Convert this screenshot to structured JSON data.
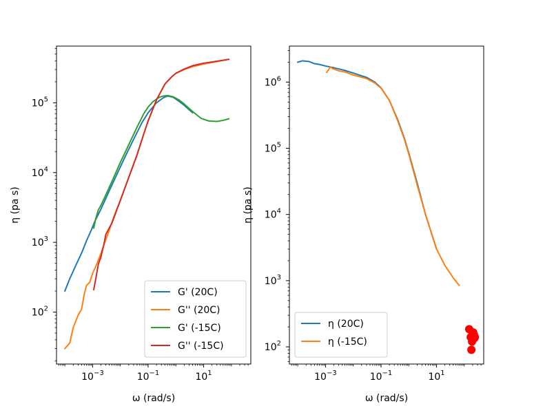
{
  "chart_data": [
    {
      "type": "line",
      "xscale": "log",
      "yscale": "log",
      "xlabel": "ω (rad/s)",
      "ylabel": "η (pa s)",
      "xlim": [
        5e-05,
        500
      ],
      "ylim": [
        18,
        650000
      ],
      "xticks": [
        {
          "value": 0.001,
          "base": "10",
          "exp": "−3"
        },
        {
          "value": 0.1,
          "base": "10",
          "exp": "−1"
        },
        {
          "value": 10,
          "base": "10",
          "exp": "1"
        }
      ],
      "yticks": [
        {
          "value": 100,
          "base": "10",
          "exp": "2"
        },
        {
          "value": 1000,
          "base": "10",
          "exp": "3"
        },
        {
          "value": 10000,
          "base": "10",
          "exp": "4"
        },
        {
          "value": 100000,
          "base": "10",
          "exp": "5"
        }
      ],
      "legend_position": "lower-right",
      "series": [
        {
          "name": "G' (20C)",
          "color": "#1f77b4",
          "x": [
            0.0001,
            0.00015,
            0.00025,
            0.0004,
            0.0006,
            0.0009,
            0.0012,
            0.002,
            0.004,
            0.008,
            0.016,
            0.03,
            0.06,
            0.1,
            0.2,
            0.35,
            0.5,
            0.8,
            1.3,
            2,
            4
          ],
          "y": [
            200,
            300,
            470,
            700,
            1050,
            1500,
            2000,
            3000,
            5500,
            10000,
            18000,
            30000,
            52000,
            72000,
            100000,
            118000,
            125000,
            120000,
            105000,
            92000,
            72000
          ]
        },
        {
          "name": "G'' (20C)",
          "color": "#ff7f0e",
          "x": [
            0.0001,
            0.00015,
            0.0002,
            0.0003,
            0.0004,
            0.0005,
            0.0006,
            0.0008,
            0.001,
            0.0013,
            0.0018,
            0.0025,
            0.004,
            0.006,
            0.01,
            0.02,
            0.04,
            0.07,
            0.1,
            0.2,
            0.4,
            0.7,
            1,
            2,
            4,
            10,
            30,
            80
          ],
          "y": [
            30,
            36,
            60,
            90,
            110,
            180,
            240,
            270,
            360,
            450,
            620,
            900,
            1500,
            2400,
            4000,
            8500,
            18000,
            36000,
            55000,
            110000,
            185000,
            235000,
            265000,
            300000,
            330000,
            360000,
            390000,
            420000
          ]
        },
        {
          "name": "G' (-15C)",
          "color": "#2ca02c",
          "x": [
            0.0011,
            0.0013,
            0.0016,
            0.002,
            0.003,
            0.005,
            0.01,
            0.02,
            0.04,
            0.07,
            0.1,
            0.15,
            0.25,
            0.35,
            0.5,
            0.8,
            1.3,
            2,
            4,
            8,
            15,
            30,
            50,
            80
          ],
          "y": [
            1600,
            2200,
            2900,
            3400,
            4800,
            7500,
            14000,
            25000,
            45000,
            70000,
            87000,
            104000,
            120000,
            125000,
            127000,
            122000,
            110000,
            96000,
            75000,
            60000,
            55000,
            54000,
            56000,
            59000
          ]
        },
        {
          "name": "G'' (-15C)",
          "color": "#d62728",
          "x": [
            0.0011,
            0.0013,
            0.0016,
            0.002,
            0.0025,
            0.003,
            0.005,
            0.01,
            0.02,
            0.04,
            0.07,
            0.1,
            0.2,
            0.4,
            0.7,
            1,
            2,
            4,
            10,
            30,
            80
          ],
          "y": [
            210,
            300,
            480,
            620,
            900,
            1300,
            1900,
            4000,
            8500,
            18000,
            36000,
            55000,
            110000,
            185000,
            235000,
            265000,
            305000,
            340000,
            370000,
            395000,
            420000
          ]
        }
      ]
    },
    {
      "type": "line",
      "xscale": "log",
      "yscale": "log",
      "xlabel": "ω (rad/s)",
      "ylabel": "η (pa s)",
      "xlim": [
        5e-05,
        500
      ],
      "ylim": [
        55,
        3500000
      ],
      "xticks": [
        {
          "value": 0.001,
          "base": "10",
          "exp": "−3"
        },
        {
          "value": 0.1,
          "base": "10",
          "exp": "−1"
        },
        {
          "value": 10,
          "base": "10",
          "exp": "1"
        }
      ],
      "yticks": [
        {
          "value": 100,
          "base": "10",
          "exp": "2"
        },
        {
          "value": 1000,
          "base": "10",
          "exp": "3"
        },
        {
          "value": 10000,
          "base": "10",
          "exp": "4"
        },
        {
          "value": 100000,
          "base": "10",
          "exp": "5"
        },
        {
          "value": 1000000,
          "base": "10",
          "exp": "6"
        }
      ],
      "legend_position": "lower-left",
      "series": [
        {
          "name": "η (20C)",
          "color": "#1f77b4",
          "x": [
            0.0001,
            0.00015,
            0.00025,
            0.0004,
            0.0006,
            0.001,
            0.002,
            0.005,
            0.01,
            0.03,
            0.06,
            0.1,
            0.2,
            0.4,
            0.7,
            1,
            2,
            4,
            10
          ],
          "y": [
            2000000,
            2100000,
            2050000,
            1900000,
            1850000,
            1750000,
            1650000,
            1500000,
            1370000,
            1180000,
            1000000,
            820000,
            530000,
            270000,
            140000,
            85000,
            30000,
            10000,
            3000
          ]
        },
        {
          "name": "η (-15C)",
          "color": "#ff7f0e",
          "x": [
            0.0011,
            0.0013,
            0.0015,
            0.0018,
            0.003,
            0.005,
            0.01,
            0.03,
            0.06,
            0.1,
            0.2,
            0.4,
            0.7,
            1,
            2,
            4,
            10,
            20,
            40,
            65
          ],
          "y": [
            1400000,
            1550000,
            1700000,
            1600000,
            1480000,
            1420000,
            1280000,
            1130000,
            970000,
            810000,
            530000,
            260000,
            135000,
            82000,
            28000,
            10000,
            3000,
            1700,
            1100,
            850
          ]
        },
        {
          "name": "",
          "color": "#ff0000",
          "marker": "o",
          "linestyle": "none",
          "x": [
            150,
            170,
            190,
            210,
            225,
            230,
            240,
            200,
            180
          ],
          "y": [
            185,
            140,
            120,
            165,
            150,
            135,
            140,
            155,
            90
          ]
        }
      ]
    }
  ]
}
